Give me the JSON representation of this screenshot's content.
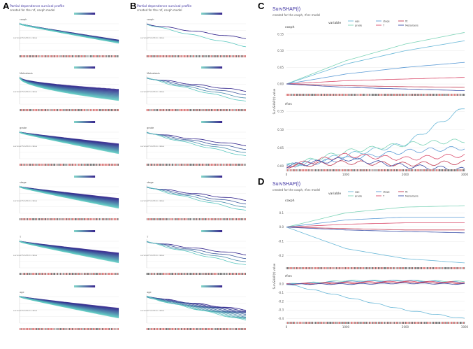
{
  "panel_labels": {
    "A": "A",
    "B": "B",
    "C": "C",
    "D": "D"
  },
  "panel_a": {
    "title": "Partial dependence survival profile",
    "subtitle": "created for the rsf, coxph model"
  },
  "panel_b": {
    "title": "Partial dependence survival profile",
    "subtitle": "created for the rsf, coxph model"
  },
  "panel_c": {
    "title": "SurvSHAP(t)",
    "subtitle": "created for the coxph, rfsrc model",
    "legend_title": "variable",
    "ylabel": "SurvSHAP(t) value"
  },
  "panel_d": {
    "title": "SurvSHAP(t)",
    "subtitle": "created for the coxph, rfsrc model",
    "legend_title": "variable",
    "ylabel": "SurvSHAP(t) value"
  },
  "chart_data": [
    {
      "type": "line",
      "title": "SurvSHAP(t)",
      "panel": "C",
      "facets": [
        "coxph",
        "rfsrc"
      ],
      "legend": [
        "age",
        "grade",
        "stage",
        "T",
        "fit",
        "Metastasis"
      ],
      "xlabel": "",
      "ylabel": "SurvSHAP(t) value",
      "x": [
        0,
        1000,
        2000,
        3000
      ],
      "xticks": [
        "0",
        "1000",
        "2000",
        "3000"
      ],
      "yticks_coxph": [
        "0.15",
        "0.10",
        "0.05",
        "0.00"
      ],
      "yticks_rfsrc": [
        "0.15",
        "0.10",
        "0.05",
        "0.00"
      ],
      "series_colors": [
        "#6ab8d8",
        "#7ed4b8",
        "#5c9bd6",
        "#d94a6a",
        "#c23a52",
        "#3a4fa8"
      ],
      "series_coxph": [
        {
          "name": "grade",
          "values": [
            0.0,
            0.07,
            0.12,
            0.155
          ]
        },
        {
          "name": "age",
          "values": [
            0.0,
            0.06,
            0.1,
            0.13
          ]
        },
        {
          "name": "stage",
          "values": [
            0.0,
            0.03,
            0.05,
            0.065
          ]
        },
        {
          "name": "T",
          "values": [
            0.0,
            0.01,
            0.015,
            0.02
          ]
        },
        {
          "name": "fit",
          "values": [
            0.0,
            -0.005,
            -0.008,
            -0.01
          ]
        },
        {
          "name": "Metastasis",
          "values": [
            0.0,
            -0.01,
            -0.015,
            -0.02
          ]
        }
      ],
      "series_rfsrc": [
        {
          "name": "age",
          "values": [
            0.0,
            0.03,
            0.06,
            0.16
          ]
        },
        {
          "name": "grade",
          "values": [
            0.0,
            0.04,
            0.06,
            0.07
          ]
        },
        {
          "name": "stage",
          "values": [
            0.0,
            0.02,
            0.04,
            0.05
          ]
        },
        {
          "name": "T",
          "values": [
            0.0,
            0.03,
            0.02,
            0.03
          ]
        },
        {
          "name": "fit",
          "values": [
            0.0,
            0.01,
            0.005,
            0.01
          ]
        },
        {
          "name": "Metastasis",
          "values": [
            0.0,
            0.02,
            0.0,
            -0.01
          ]
        }
      ]
    },
    {
      "type": "line",
      "title": "SurvSHAP(t)",
      "panel": "D",
      "facets": [
        "coxph",
        "rfsrc"
      ],
      "legend": [
        "age",
        "grade",
        "stage",
        "T",
        "fit",
        "Metastasis"
      ],
      "ylabel": "SurvSHAP(t) value",
      "x": [
        0,
        1000,
        2000,
        3000
      ],
      "xticks": [
        "0",
        "1000",
        "2000",
        "3000"
      ],
      "yticks_coxph": [
        "0.1",
        "0.0",
        "-0.1",
        "-0.2"
      ],
      "yticks_rfsrc": [
        "0.0",
        "-0.1",
        "-0.2",
        "-0.3",
        "-0.4"
      ],
      "series_colors": [
        "#6ab8d8",
        "#7ed4b8",
        "#5c9bd6",
        "#d94a6a",
        "#c23a52",
        "#3a4fa8"
      ],
      "series_coxph": [
        {
          "name": "grade",
          "values": [
            0.0,
            0.1,
            0.14,
            0.15
          ]
        },
        {
          "name": "stage",
          "values": [
            0.0,
            0.05,
            0.07,
            0.07
          ]
        },
        {
          "name": "T",
          "values": [
            0.0,
            0.02,
            0.03,
            0.03
          ]
        },
        {
          "name": "fit",
          "values": [
            0.0,
            -0.01,
            -0.02,
            -0.02
          ]
        },
        {
          "name": "Metastasis",
          "values": [
            0.0,
            -0.02,
            -0.03,
            -0.04
          ]
        },
        {
          "name": "age",
          "values": [
            0.0,
            -0.15,
            -0.22,
            -0.25
          ]
        }
      ],
      "series_rfsrc": [
        {
          "name": "grade",
          "values": [
            0.0,
            0.04,
            0.04,
            0.03
          ]
        },
        {
          "name": "stage",
          "values": [
            0.0,
            0.03,
            0.04,
            0.02
          ]
        },
        {
          "name": "T",
          "values": [
            0.0,
            0.02,
            0.03,
            0.02
          ]
        },
        {
          "name": "fit",
          "values": [
            0.0,
            0.01,
            0.02,
            0.01
          ]
        },
        {
          "name": "Metastasis",
          "values": [
            0.0,
            0.0,
            0.01,
            0.0
          ]
        },
        {
          "name": "age",
          "values": [
            0.0,
            -0.15,
            -0.3,
            -0.4
          ]
        }
      ]
    }
  ]
}
